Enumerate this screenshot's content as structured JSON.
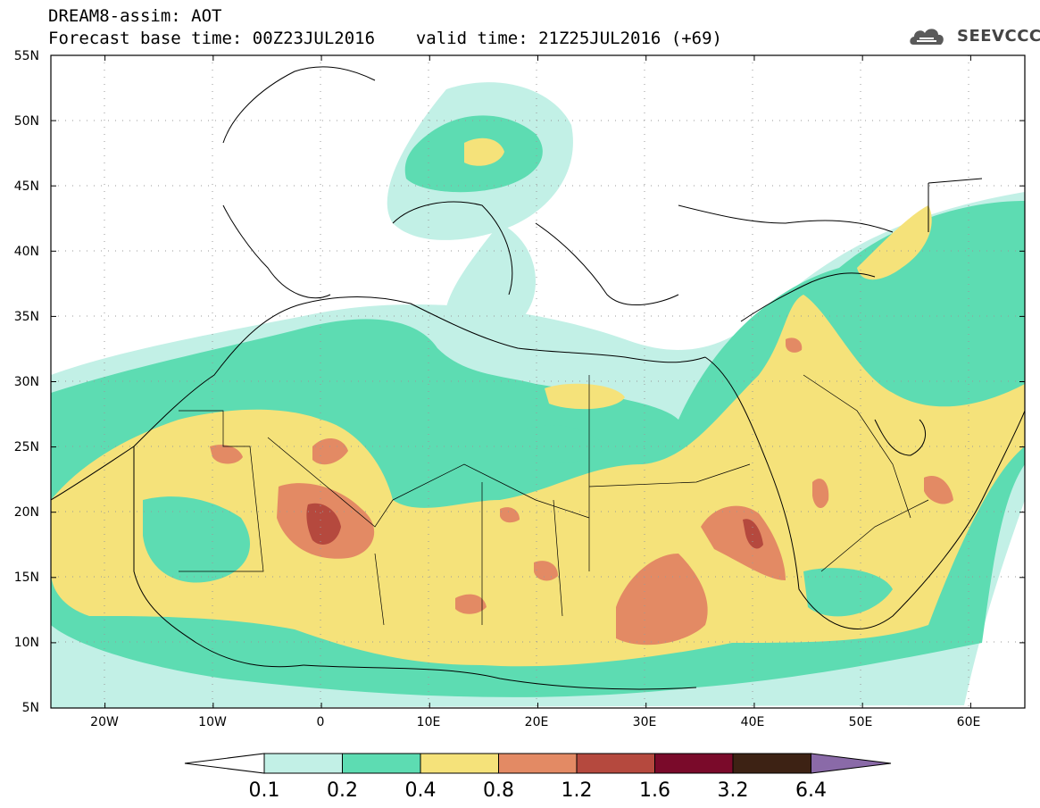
{
  "header": {
    "title": "DREAM8-assim: AOT",
    "line2_left": "Forecast base time: 00Z23JUL2016",
    "line2_right": "valid time: 21Z25JUL2016 (+69)"
  },
  "logo": {
    "text": "SEEVCCC",
    "icon": "cloud-logo-icon"
  },
  "map": {
    "lat_range": [
      5,
      55
    ],
    "lon_range": [
      -25,
      65
    ],
    "lat_labels": [
      "55N",
      "50N",
      "45N",
      "40N",
      "35N",
      "30N",
      "25N",
      "20N",
      "15N",
      "10N",
      "5N"
    ],
    "lon_labels": [
      "20W",
      "10W",
      "0",
      "10E",
      "20E",
      "30E",
      "40E",
      "50E",
      "60E"
    ],
    "grid": "dotted"
  },
  "colorbar": {
    "levels": [
      "0.1",
      "0.2",
      "0.4",
      "0.8",
      "1.2",
      "1.6",
      "3.2",
      "6.4"
    ],
    "colors": [
      "#ffffff",
      "#c2f0e6",
      "#5ddcb2",
      "#f5e27a",
      "#e38a64",
      "#b5493e",
      "#7a0a2a",
      "#3d2214",
      "#8a6aa8"
    ]
  }
}
